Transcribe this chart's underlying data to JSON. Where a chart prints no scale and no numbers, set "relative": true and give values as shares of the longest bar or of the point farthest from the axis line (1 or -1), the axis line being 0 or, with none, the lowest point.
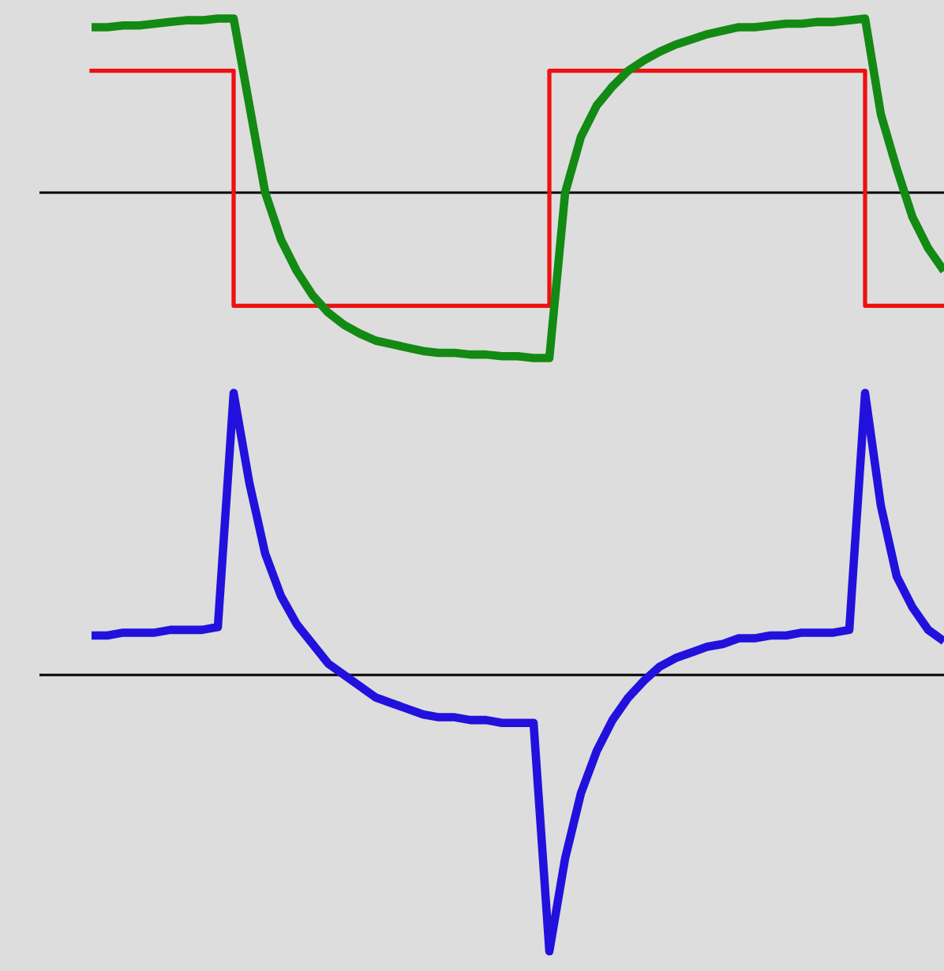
{
  "chart_data": [
    {
      "type": "line",
      "relative": true,
      "categories": [
        null,
        null,
        null,
        null,
        null,
        null,
        null,
        null,
        null,
        null,
        null,
        null,
        null,
        null,
        null,
        null,
        null,
        null,
        null,
        null,
        null,
        null,
        null,
        null,
        null,
        null,
        null,
        null,
        null,
        null,
        null,
        null,
        null,
        null,
        null,
        null,
        null,
        null,
        null,
        null,
        null,
        null,
        null,
        null,
        null,
        null,
        null,
        null,
        null,
        null,
        null,
        null,
        null,
        null,
        null
      ],
      "series": [
        {
          "type": "step",
          "color": "#ee1111",
          "values": [
            0.7,
            0.7,
            0.7,
            0.7,
            0.7,
            0.7,
            0.7,
            0.7,
            0.7,
            -0.65,
            -0.65,
            -0.65,
            -0.65,
            -0.65,
            -0.65,
            -0.65,
            -0.65,
            -0.65,
            -0.65,
            -0.65,
            -0.65,
            -0.65,
            -0.65,
            -0.65,
            -0.65,
            -0.65,
            -0.65,
            -0.65,
            -0.65,
            0.7,
            0.7,
            0.7,
            0.7,
            0.7,
            0.7,
            0.7,
            0.7,
            0.7,
            0.7,
            0.7,
            0.7,
            0.7,
            0.7,
            0.7,
            0.7,
            0.7,
            0.7,
            0.7,
            0.7,
            -0.65,
            -0.65,
            -0.65,
            -0.65,
            -0.65,
            -0.65
          ]
        },
        {
          "type": "line",
          "color": "#138a13",
          "values": [
            0.95,
            0.95,
            0.96,
            0.96,
            0.97,
            0.98,
            0.99,
            0.99,
            1,
            1,
            0.5,
            0,
            -0.27,
            -0.45,
            -0.59,
            -0.69,
            -0.76,
            -0.81,
            -0.85,
            -0.87,
            -0.89,
            -0.91,
            -0.92,
            -0.92,
            -0.93,
            -0.93,
            -0.94,
            -0.94,
            -0.95,
            -0.95,
            0,
            0.32,
            0.5,
            0.61,
            0.7,
            0.76,
            0.81,
            0.85,
            0.88,
            0.91,
            0.93,
            0.95,
            0.95,
            0.96,
            0.97,
            0.97,
            0.98,
            0.98,
            0.99,
            1,
            0.45,
            0.14,
            -0.14,
            -0.32,
            -0.45
          ]
        }
      ]
    },
    {
      "type": "line",
      "relative": true,
      "categories": [
        null,
        null,
        null,
        null,
        null,
        null,
        null,
        null,
        null,
        null,
        null,
        null,
        null,
        null,
        null,
        null,
        null,
        null,
        null,
        null,
        null,
        null,
        null,
        null,
        null,
        null,
        null,
        null,
        null,
        null,
        null,
        null,
        null,
        null,
        null,
        null,
        null,
        null,
        null,
        null,
        null,
        null,
        null,
        null,
        null,
        null,
        null,
        null,
        null,
        null,
        null,
        null,
        null,
        null,
        null
      ],
      "series": [
        {
          "type": "line",
          "color": "#2211dd",
          "values": [
            0.14,
            0.14,
            0.15,
            0.15,
            0.15,
            0.16,
            0.16,
            0.16,
            0.17,
            1,
            0.68,
            0.43,
            0.28,
            0.18,
            0.11,
            0.04,
            0,
            -0.04,
            -0.08,
            -0.1,
            -0.12,
            -0.14,
            -0.15,
            -0.15,
            -0.16,
            -0.16,
            -0.17,
            -0.17,
            -0.17,
            -0.98,
            -0.65,
            -0.42,
            -0.27,
            -0.16,
            -0.08,
            -0.02,
            0.03,
            0.06,
            0.08,
            0.1,
            0.11,
            0.13,
            0.13,
            0.14,
            0.14,
            0.15,
            0.15,
            0.15,
            0.16,
            1,
            0.6,
            0.35,
            0.24,
            0.16,
            0.12
          ]
        }
      ]
    }
  ]
}
